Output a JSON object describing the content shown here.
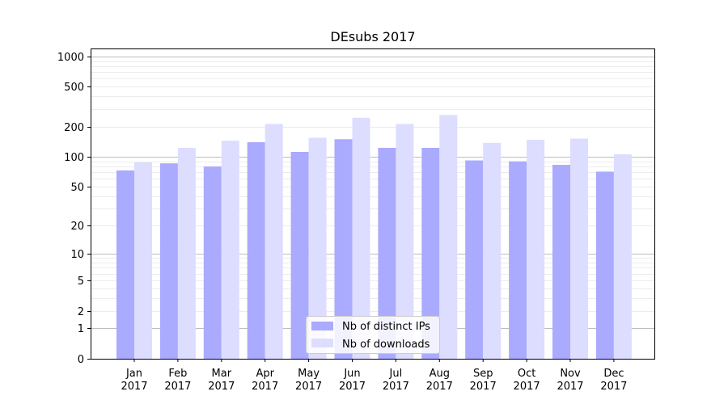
{
  "chart_data": {
    "type": "bar",
    "title": "DEsubs 2017",
    "xlabel": "",
    "ylabel": "",
    "y_scale": "log1p",
    "ylim": [
      0,
      1200
    ],
    "y_ticks": [
      0,
      1,
      2,
      5,
      10,
      20,
      50,
      100,
      200,
      500,
      1000
    ],
    "grid": "horizontal",
    "legend_position": "bottom-center",
    "categories": [
      "Jan\n2017",
      "Feb\n2017",
      "Mar\n2017",
      "Apr\n2017",
      "May\n2017",
      "Jun\n2017",
      "Jul\n2017",
      "Aug\n2017",
      "Sep\n2017",
      "Oct\n2017",
      "Nov\n2017",
      "Dec\n2017"
    ],
    "series": [
      {
        "name": "Nb of distinct IPs",
        "color": "#aaaaff",
        "values": [
          73,
          86,
          80,
          140,
          112,
          150,
          123,
          123,
          92,
          90,
          83,
          71
        ]
      },
      {
        "name": "Nb of downloads",
        "color": "#ddddff",
        "values": [
          88,
          123,
          145,
          213,
          155,
          245,
          213,
          262,
          138,
          148,
          152,
          106
        ]
      }
    ]
  }
}
